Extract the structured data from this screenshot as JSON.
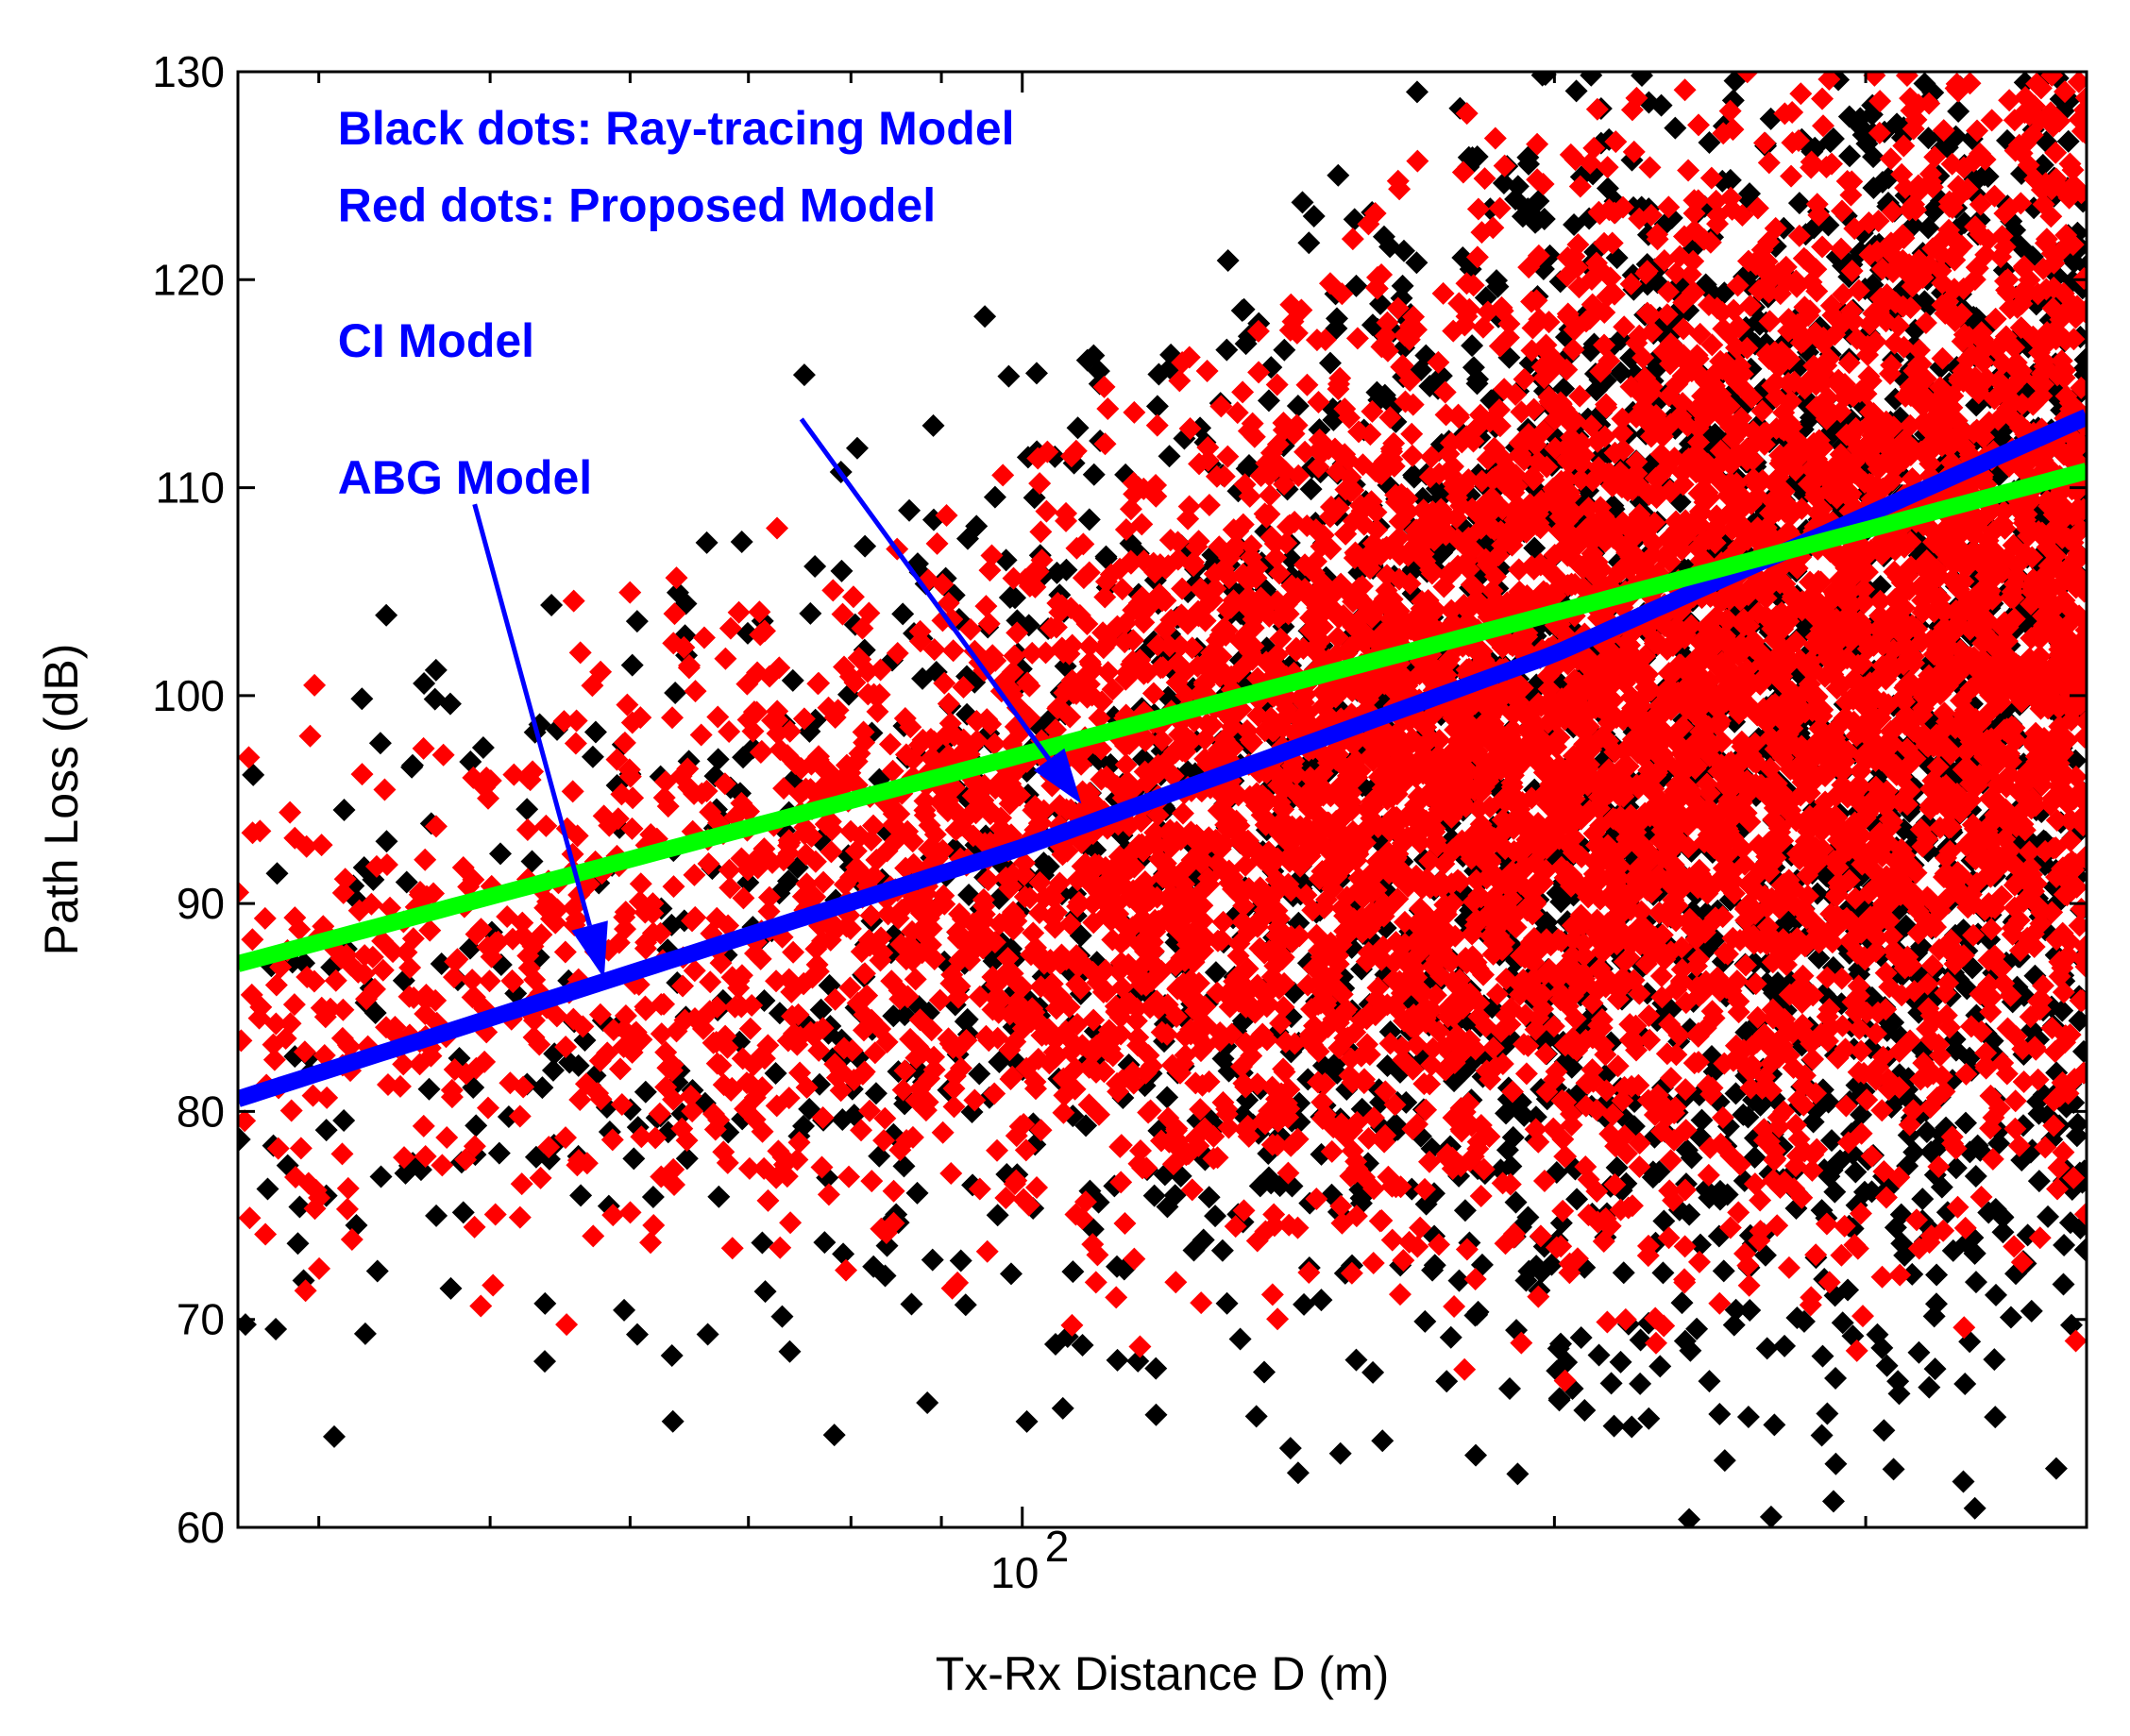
{
  "chart_data": {
    "type": "scatter",
    "title": "",
    "xlabel": "Tx-Rx Distance D (m)",
    "ylabel": "Path Loss (dB)",
    "xscale": "log",
    "xlim": [
      36,
      400
    ],
    "ylim": [
      60,
      130
    ],
    "x_ticks": [
      {
        "value": 100,
        "base": "10",
        "exp": "2"
      }
    ],
    "x_minor_ticks": [
      40,
      50,
      60,
      70,
      80,
      90,
      200,
      300,
      400
    ],
    "y_ticks": [
      60,
      70,
      80,
      90,
      100,
      110,
      120,
      130
    ],
    "grid": false,
    "colors": {
      "ray_tracing": "#000000",
      "proposed": "#ff0000",
      "ci_model": "#0000ff",
      "abg_model": "#00ff00",
      "annotation": "#0000ff"
    },
    "series": [
      {
        "key": "ray_tracing",
        "marker": "diamond",
        "seed": 11,
        "count": 3200,
        "density": [
          [
            36,
            0.05
          ],
          [
            60,
            0.1
          ],
          [
            100,
            0.25
          ],
          [
            150,
            0.5
          ],
          [
            200,
            0.8
          ],
          [
            400,
            1
          ]
        ],
        "center": [
          [
            36,
            82
          ],
          [
            100,
            92
          ],
          [
            200,
            98
          ],
          [
            400,
            104
          ]
        ],
        "spread": [
          [
            36,
            9
          ],
          [
            100,
            11
          ],
          [
            200,
            16
          ],
          [
            400,
            19
          ]
        ]
      },
      {
        "key": "proposed",
        "marker": "diamond",
        "seed": 7,
        "count": 6500,
        "density": [
          [
            36,
            0.08
          ],
          [
            60,
            0.15
          ],
          [
            100,
            0.4
          ],
          [
            150,
            0.75
          ],
          [
            200,
            1
          ],
          [
            400,
            1
          ]
        ],
        "center": [
          [
            36,
            84
          ],
          [
            100,
            92
          ],
          [
            200,
            99
          ],
          [
            400,
            105
          ]
        ],
        "spread": [
          [
            36,
            6
          ],
          [
            100,
            8
          ],
          [
            200,
            12
          ],
          [
            400,
            13
          ]
        ]
      }
    ],
    "lines": [
      {
        "key": "ci_model",
        "points": [
          [
            36,
            80.6
          ],
          [
            100,
            92.7
          ],
          [
            200,
            102
          ],
          [
            400,
            113.4
          ]
        ]
      },
      {
        "key": "abg_model",
        "points": [
          [
            36,
            87.1
          ],
          [
            400,
            110.8
          ]
        ]
      }
    ],
    "annotations": [
      {
        "key": "legend_black",
        "text": "Black dots: Ray-tracing Model",
        "x": 41,
        "y": 126.5
      },
      {
        "key": "legend_red",
        "text": "Red dots: Proposed Model",
        "x": 41,
        "y": 122.8
      },
      {
        "key": "ci_label",
        "text": "CI Model",
        "x": 41,
        "y": 116.3
      },
      {
        "key": "abg_label",
        "text": "ABG Model",
        "x": 41,
        "y": 109.7
      }
    ],
    "arrows": [
      {
        "key": "ci_arrow",
        "from": [
          75,
          113.3
        ],
        "to": [
          108,
          94.8
        ]
      },
      {
        "key": "abg_arrow",
        "from": [
          49,
          109.2
        ],
        "to": [
          58,
          86.4
        ]
      }
    ]
  }
}
